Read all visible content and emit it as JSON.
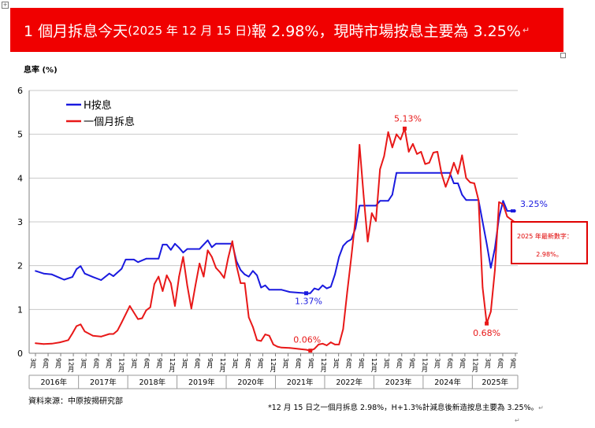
{
  "banner": {
    "part1": "1 個月拆息今天",
    "part2": "(2025 年 12 月 15 日)",
    "part3": "報 2.98%，現時市場按息主要為 3.25%",
    "tail": "↵"
  },
  "source": "資料來源：中原按揭研究部",
  "footnote": "*12 月 15 日之一個月拆息 2.98%，H+1.3%計減息後新造按息主要為 3.25%。",
  "footnote_tail": "↵",
  "callout": {
    "line1": "2025 年最新數字：",
    "line2": "2.98%。"
  },
  "colors": {
    "banner": "#f00000",
    "h_rate": "#1a1adf",
    "hibor": "#e81818",
    "callout_border": "#e00000"
  },
  "chart_data": {
    "type": "line",
    "ylabel": "息率 (%)",
    "ylim": [
      0,
      6
    ],
    "yticks": [
      0,
      1,
      2,
      3,
      4,
      5,
      6
    ],
    "grid": true,
    "legend_position": "top-left",
    "x_start": "2016-03",
    "x_end": "2025-12",
    "x_tick_labels": [
      "3月",
      "6月",
      "9月",
      "12月",
      "3月",
      "6月",
      "9月",
      "12月",
      "3月",
      "6月",
      "9月",
      "12月",
      "3月",
      "6月",
      "9月",
      "12月",
      "3月",
      "6月",
      "9月",
      "12月",
      "3月",
      "6月",
      "9月",
      "12月",
      "3月",
      "6月",
      "9月",
      "12月",
      "3月",
      "6月",
      "9月",
      "12月",
      "3月",
      "6月",
      "9月",
      "12月",
      "3月",
      "6月",
      "9月"
    ],
    "year_labels": [
      "2016年",
      "2017年",
      "2018年",
      "2019年",
      "2020年",
      "2021年",
      "2022年",
      "2023年",
      "2024年",
      "2025年"
    ],
    "series": [
      {
        "name": "H按息",
        "color": "#1a1adf",
        "points": [
          [
            "2016-03",
            1.88
          ],
          [
            "2016-05",
            1.82
          ],
          [
            "2016-07",
            1.8
          ],
          [
            "2016-09",
            1.72
          ],
          [
            "2016-10",
            1.68
          ],
          [
            "2016-12",
            1.74
          ],
          [
            "2017-01",
            1.92
          ],
          [
            "2017-02",
            1.99
          ],
          [
            "2017-03",
            1.82
          ],
          [
            "2017-05",
            1.74
          ],
          [
            "2017-07",
            1.67
          ],
          [
            "2017-09",
            1.82
          ],
          [
            "2017-10",
            1.76
          ],
          [
            "2017-12",
            1.93
          ],
          [
            "2018-01",
            2.14
          ],
          [
            "2018-03",
            2.14
          ],
          [
            "2018-04",
            2.08
          ],
          [
            "2018-06",
            2.16
          ],
          [
            "2018-09",
            2.16
          ],
          [
            "2018-10",
            2.48
          ],
          [
            "2018-11",
            2.48
          ],
          [
            "2018-12",
            2.36
          ],
          [
            "2019-01",
            2.5
          ],
          [
            "2019-02",
            2.41
          ],
          [
            "2019-03",
            2.3
          ],
          [
            "2019-04",
            2.38
          ],
          [
            "2019-07",
            2.38
          ],
          [
            "2019-08",
            2.48
          ],
          [
            "2019-09",
            2.58
          ],
          [
            "2019-10",
            2.42
          ],
          [
            "2019-11",
            2.5
          ],
          [
            "2020-03",
            2.5
          ],
          [
            "2020-04",
            2.1
          ],
          [
            "2020-05",
            1.9
          ],
          [
            "2020-06",
            1.8
          ],
          [
            "2020-07",
            1.75
          ],
          [
            "2020-08",
            1.88
          ],
          [
            "2020-09",
            1.78
          ],
          [
            "2020-10",
            1.5
          ],
          [
            "2020-11",
            1.55
          ],
          [
            "2020-12",
            1.45
          ],
          [
            "2021-03",
            1.45
          ],
          [
            "2021-05",
            1.4
          ],
          [
            "2021-09",
            1.37
          ],
          [
            "2021-10",
            1.37
          ],
          [
            "2021-11",
            1.48
          ],
          [
            "2021-12",
            1.45
          ],
          [
            "2022-01",
            1.55
          ],
          [
            "2022-02",
            1.48
          ],
          [
            "2022-03",
            1.52
          ],
          [
            "2022-04",
            1.8
          ],
          [
            "2022-05",
            2.2
          ],
          [
            "2022-06",
            2.45
          ],
          [
            "2022-07",
            2.55
          ],
          [
            "2022-08",
            2.6
          ],
          [
            "2022-09",
            2.85
          ],
          [
            "2022-10",
            3.37
          ],
          [
            "2022-12",
            3.37
          ],
          [
            "2023-02",
            3.37
          ],
          [
            "2023-03",
            3.48
          ],
          [
            "2023-05",
            3.48
          ],
          [
            "2023-06",
            3.62
          ],
          [
            "2023-07",
            4.12
          ],
          [
            "2024-08",
            4.12
          ],
          [
            "2024-09",
            3.88
          ],
          [
            "2024-10",
            3.88
          ],
          [
            "2024-11",
            3.62
          ],
          [
            "2024-12",
            3.5
          ],
          [
            "2025-03",
            3.5
          ],
          [
            "2025-05",
            2.5
          ],
          [
            "2025-06",
            1.95
          ],
          [
            "2025-07",
            2.4
          ],
          [
            "2025-08",
            3.1
          ],
          [
            "2025-09",
            3.48
          ],
          [
            "2025-10",
            3.25
          ],
          [
            "2025-11",
            3.25
          ],
          [
            "2025-12",
            3.25
          ]
        ]
      },
      {
        "name": "一個月拆息",
        "color": "#e81818",
        "points": [
          [
            "2016-03",
            0.23
          ],
          [
            "2016-05",
            0.21
          ],
          [
            "2016-07",
            0.22
          ],
          [
            "2016-09",
            0.25
          ],
          [
            "2016-11",
            0.3
          ],
          [
            "2016-12",
            0.45
          ],
          [
            "2017-01",
            0.62
          ],
          [
            "2017-02",
            0.66
          ],
          [
            "2017-03",
            0.5
          ],
          [
            "2017-05",
            0.4
          ],
          [
            "2017-07",
            0.38
          ],
          [
            "2017-09",
            0.44
          ],
          [
            "2017-10",
            0.44
          ],
          [
            "2017-11",
            0.52
          ],
          [
            "2017-12",
            0.7
          ],
          [
            "2018-02",
            1.08
          ],
          [
            "2018-04",
            0.78
          ],
          [
            "2018-05",
            0.8
          ],
          [
            "2018-06",
            0.98
          ],
          [
            "2018-07",
            1.05
          ],
          [
            "2018-08",
            1.58
          ],
          [
            "2018-09",
            1.75
          ],
          [
            "2018-10",
            1.42
          ],
          [
            "2018-11",
            1.78
          ],
          [
            "2018-12",
            1.6
          ],
          [
            "2019-01",
            1.08
          ],
          [
            "2019-02",
            1.75
          ],
          [
            "2019-03",
            2.2
          ],
          [
            "2019-04",
            1.55
          ],
          [
            "2019-05",
            1.02
          ],
          [
            "2019-06",
            1.55
          ],
          [
            "2019-07",
            2.05
          ],
          [
            "2019-08",
            1.75
          ],
          [
            "2019-09",
            2.35
          ],
          [
            "2019-10",
            2.2
          ],
          [
            "2019-11",
            1.95
          ],
          [
            "2019-12",
            1.85
          ],
          [
            "2020-01",
            1.72
          ],
          [
            "2020-02",
            2.18
          ],
          [
            "2020-03",
            2.56
          ],
          [
            "2020-04",
            2.0
          ],
          [
            "2020-05",
            1.6
          ],
          [
            "2020-06",
            1.6
          ],
          [
            "2020-07",
            0.82
          ],
          [
            "2020-08",
            0.6
          ],
          [
            "2020-09",
            0.3
          ],
          [
            "2020-10",
            0.28
          ],
          [
            "2020-11",
            0.43
          ],
          [
            "2020-12",
            0.4
          ],
          [
            "2021-01",
            0.2
          ],
          [
            "2021-02",
            0.15
          ],
          [
            "2021-03",
            0.13
          ],
          [
            "2021-05",
            0.12
          ],
          [
            "2021-07",
            0.1
          ],
          [
            "2021-09",
            0.08
          ],
          [
            "2021-10",
            0.06
          ],
          [
            "2021-11",
            0.1
          ],
          [
            "2021-12",
            0.2
          ],
          [
            "2022-01",
            0.22
          ],
          [
            "2022-02",
            0.18
          ],
          [
            "2022-03",
            0.25
          ],
          [
            "2022-04",
            0.2
          ],
          [
            "2022-05",
            0.2
          ],
          [
            "2022-06",
            0.55
          ],
          [
            "2022-07",
            1.4
          ],
          [
            "2022-08",
            2.2
          ],
          [
            "2022-09",
            3.05
          ],
          [
            "2022-10",
            4.76
          ],
          [
            "2022-11",
            3.6
          ],
          [
            "2022-12",
            2.55
          ],
          [
            "2023-01",
            3.2
          ],
          [
            "2023-02",
            3.02
          ],
          [
            "2023-03",
            4.2
          ],
          [
            "2023-04",
            4.5
          ],
          [
            "2023-05",
            5.05
          ],
          [
            "2023-06",
            4.7
          ],
          [
            "2023-07",
            5.0
          ],
          [
            "2023-08",
            4.88
          ],
          [
            "2023-09",
            5.13
          ],
          [
            "2023-10",
            4.6
          ],
          [
            "2023-11",
            4.78
          ],
          [
            "2023-12",
            4.55
          ],
          [
            "2024-01",
            4.6
          ],
          [
            "2024-02",
            4.32
          ],
          [
            "2024-03",
            4.35
          ],
          [
            "2024-04",
            4.58
          ],
          [
            "2024-05",
            4.6
          ],
          [
            "2024-06",
            4.1
          ],
          [
            "2024-07",
            3.8
          ],
          [
            "2024-08",
            4.05
          ],
          [
            "2024-09",
            4.35
          ],
          [
            "2024-10",
            4.1
          ],
          [
            "2024-11",
            4.52
          ],
          [
            "2024-12",
            4.0
          ],
          [
            "2025-01",
            3.9
          ],
          [
            "2025-02",
            3.88
          ],
          [
            "2025-03",
            3.5
          ],
          [
            "2025-04",
            1.5
          ],
          [
            "2025-05",
            0.68
          ],
          [
            "2025-06",
            0.95
          ],
          [
            "2025-07",
            1.9
          ],
          [
            "2025-08",
            3.45
          ],
          [
            "2025-09",
            3.4
          ],
          [
            "2025-10",
            3.12
          ],
          [
            "2025-11",
            3.05
          ],
          [
            "2025-12",
            2.98
          ]
        ]
      }
    ],
    "annotations": [
      {
        "text": "5.13%",
        "series": "一個月拆息",
        "x": "2023-09",
        "y": 5.13,
        "color": "#e81818"
      },
      {
        "text": "0.06%",
        "series": "一個月拆息",
        "x": "2021-10",
        "y": 0.06,
        "color": "#e81818"
      },
      {
        "text": "0.68%",
        "series": "一個月拆息",
        "x": "2025-05",
        "y": 0.68,
        "color": "#e81818"
      },
      {
        "text": "1.37%",
        "series": "H按息",
        "x": "2021-09",
        "y": 1.37,
        "color": "#1a1adf"
      },
      {
        "text": "3.25%",
        "series": "H按息",
        "x": "2025-12",
        "y": 3.25,
        "color": "#1a1adf"
      }
    ]
  }
}
